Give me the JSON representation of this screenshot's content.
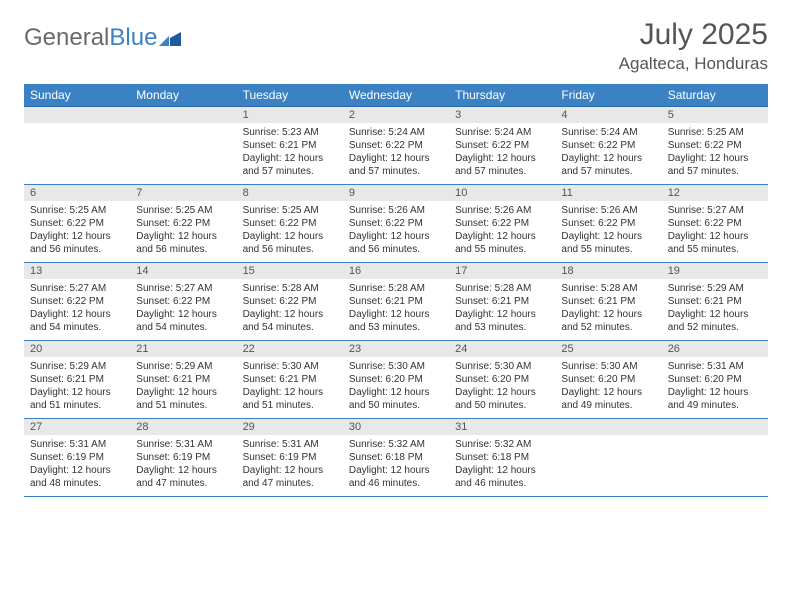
{
  "logo": {
    "text_gray": "General",
    "text_blue": "Blue"
  },
  "title": {
    "month_year": "July 2025",
    "location": "Agalteca, Honduras"
  },
  "colors": {
    "header_bg": "#3b82c4",
    "header_text": "#ffffff",
    "daynum_bg": "#e8e8e8",
    "daynum_text": "#555555",
    "cell_text": "#333333",
    "row_border": "#3b82c4",
    "page_bg": "#ffffff",
    "logo_gray": "#6a6a6a",
    "logo_blue": "#3b82c4"
  },
  "typography": {
    "title_fontsize_pt": 22,
    "location_fontsize_pt": 13,
    "dayheader_fontsize_pt": 9,
    "daynum_fontsize_pt": 8,
    "cell_fontsize_pt": 7.5
  },
  "day_headers": [
    "Sunday",
    "Monday",
    "Tuesday",
    "Wednesday",
    "Thursday",
    "Friday",
    "Saturday"
  ],
  "weeks": [
    [
      {
        "empty": true
      },
      {
        "empty": true
      },
      {
        "num": "1",
        "sunrise": "Sunrise: 5:23 AM",
        "sunset": "Sunset: 6:21 PM",
        "daylight": "Daylight: 12 hours and 57 minutes."
      },
      {
        "num": "2",
        "sunrise": "Sunrise: 5:24 AM",
        "sunset": "Sunset: 6:22 PM",
        "daylight": "Daylight: 12 hours and 57 minutes."
      },
      {
        "num": "3",
        "sunrise": "Sunrise: 5:24 AM",
        "sunset": "Sunset: 6:22 PM",
        "daylight": "Daylight: 12 hours and 57 minutes."
      },
      {
        "num": "4",
        "sunrise": "Sunrise: 5:24 AM",
        "sunset": "Sunset: 6:22 PM",
        "daylight": "Daylight: 12 hours and 57 minutes."
      },
      {
        "num": "5",
        "sunrise": "Sunrise: 5:25 AM",
        "sunset": "Sunset: 6:22 PM",
        "daylight": "Daylight: 12 hours and 57 minutes."
      }
    ],
    [
      {
        "num": "6",
        "sunrise": "Sunrise: 5:25 AM",
        "sunset": "Sunset: 6:22 PM",
        "daylight": "Daylight: 12 hours and 56 minutes."
      },
      {
        "num": "7",
        "sunrise": "Sunrise: 5:25 AM",
        "sunset": "Sunset: 6:22 PM",
        "daylight": "Daylight: 12 hours and 56 minutes."
      },
      {
        "num": "8",
        "sunrise": "Sunrise: 5:25 AM",
        "sunset": "Sunset: 6:22 PM",
        "daylight": "Daylight: 12 hours and 56 minutes."
      },
      {
        "num": "9",
        "sunrise": "Sunrise: 5:26 AM",
        "sunset": "Sunset: 6:22 PM",
        "daylight": "Daylight: 12 hours and 56 minutes."
      },
      {
        "num": "10",
        "sunrise": "Sunrise: 5:26 AM",
        "sunset": "Sunset: 6:22 PM",
        "daylight": "Daylight: 12 hours and 55 minutes."
      },
      {
        "num": "11",
        "sunrise": "Sunrise: 5:26 AM",
        "sunset": "Sunset: 6:22 PM",
        "daylight": "Daylight: 12 hours and 55 minutes."
      },
      {
        "num": "12",
        "sunrise": "Sunrise: 5:27 AM",
        "sunset": "Sunset: 6:22 PM",
        "daylight": "Daylight: 12 hours and 55 minutes."
      }
    ],
    [
      {
        "num": "13",
        "sunrise": "Sunrise: 5:27 AM",
        "sunset": "Sunset: 6:22 PM",
        "daylight": "Daylight: 12 hours and 54 minutes."
      },
      {
        "num": "14",
        "sunrise": "Sunrise: 5:27 AM",
        "sunset": "Sunset: 6:22 PM",
        "daylight": "Daylight: 12 hours and 54 minutes."
      },
      {
        "num": "15",
        "sunrise": "Sunrise: 5:28 AM",
        "sunset": "Sunset: 6:22 PM",
        "daylight": "Daylight: 12 hours and 54 minutes."
      },
      {
        "num": "16",
        "sunrise": "Sunrise: 5:28 AM",
        "sunset": "Sunset: 6:21 PM",
        "daylight": "Daylight: 12 hours and 53 minutes."
      },
      {
        "num": "17",
        "sunrise": "Sunrise: 5:28 AM",
        "sunset": "Sunset: 6:21 PM",
        "daylight": "Daylight: 12 hours and 53 minutes."
      },
      {
        "num": "18",
        "sunrise": "Sunrise: 5:28 AM",
        "sunset": "Sunset: 6:21 PM",
        "daylight": "Daylight: 12 hours and 52 minutes."
      },
      {
        "num": "19",
        "sunrise": "Sunrise: 5:29 AM",
        "sunset": "Sunset: 6:21 PM",
        "daylight": "Daylight: 12 hours and 52 minutes."
      }
    ],
    [
      {
        "num": "20",
        "sunrise": "Sunrise: 5:29 AM",
        "sunset": "Sunset: 6:21 PM",
        "daylight": "Daylight: 12 hours and 51 minutes."
      },
      {
        "num": "21",
        "sunrise": "Sunrise: 5:29 AM",
        "sunset": "Sunset: 6:21 PM",
        "daylight": "Daylight: 12 hours and 51 minutes."
      },
      {
        "num": "22",
        "sunrise": "Sunrise: 5:30 AM",
        "sunset": "Sunset: 6:21 PM",
        "daylight": "Daylight: 12 hours and 51 minutes."
      },
      {
        "num": "23",
        "sunrise": "Sunrise: 5:30 AM",
        "sunset": "Sunset: 6:20 PM",
        "daylight": "Daylight: 12 hours and 50 minutes."
      },
      {
        "num": "24",
        "sunrise": "Sunrise: 5:30 AM",
        "sunset": "Sunset: 6:20 PM",
        "daylight": "Daylight: 12 hours and 50 minutes."
      },
      {
        "num": "25",
        "sunrise": "Sunrise: 5:30 AM",
        "sunset": "Sunset: 6:20 PM",
        "daylight": "Daylight: 12 hours and 49 minutes."
      },
      {
        "num": "26",
        "sunrise": "Sunrise: 5:31 AM",
        "sunset": "Sunset: 6:20 PM",
        "daylight": "Daylight: 12 hours and 49 minutes."
      }
    ],
    [
      {
        "num": "27",
        "sunrise": "Sunrise: 5:31 AM",
        "sunset": "Sunset: 6:19 PM",
        "daylight": "Daylight: 12 hours and 48 minutes."
      },
      {
        "num": "28",
        "sunrise": "Sunrise: 5:31 AM",
        "sunset": "Sunset: 6:19 PM",
        "daylight": "Daylight: 12 hours and 47 minutes."
      },
      {
        "num": "29",
        "sunrise": "Sunrise: 5:31 AM",
        "sunset": "Sunset: 6:19 PM",
        "daylight": "Daylight: 12 hours and 47 minutes."
      },
      {
        "num": "30",
        "sunrise": "Sunrise: 5:32 AM",
        "sunset": "Sunset: 6:18 PM",
        "daylight": "Daylight: 12 hours and 46 minutes."
      },
      {
        "num": "31",
        "sunrise": "Sunrise: 5:32 AM",
        "sunset": "Sunset: 6:18 PM",
        "daylight": "Daylight: 12 hours and 46 minutes."
      },
      {
        "empty": true
      },
      {
        "empty": true
      }
    ]
  ]
}
